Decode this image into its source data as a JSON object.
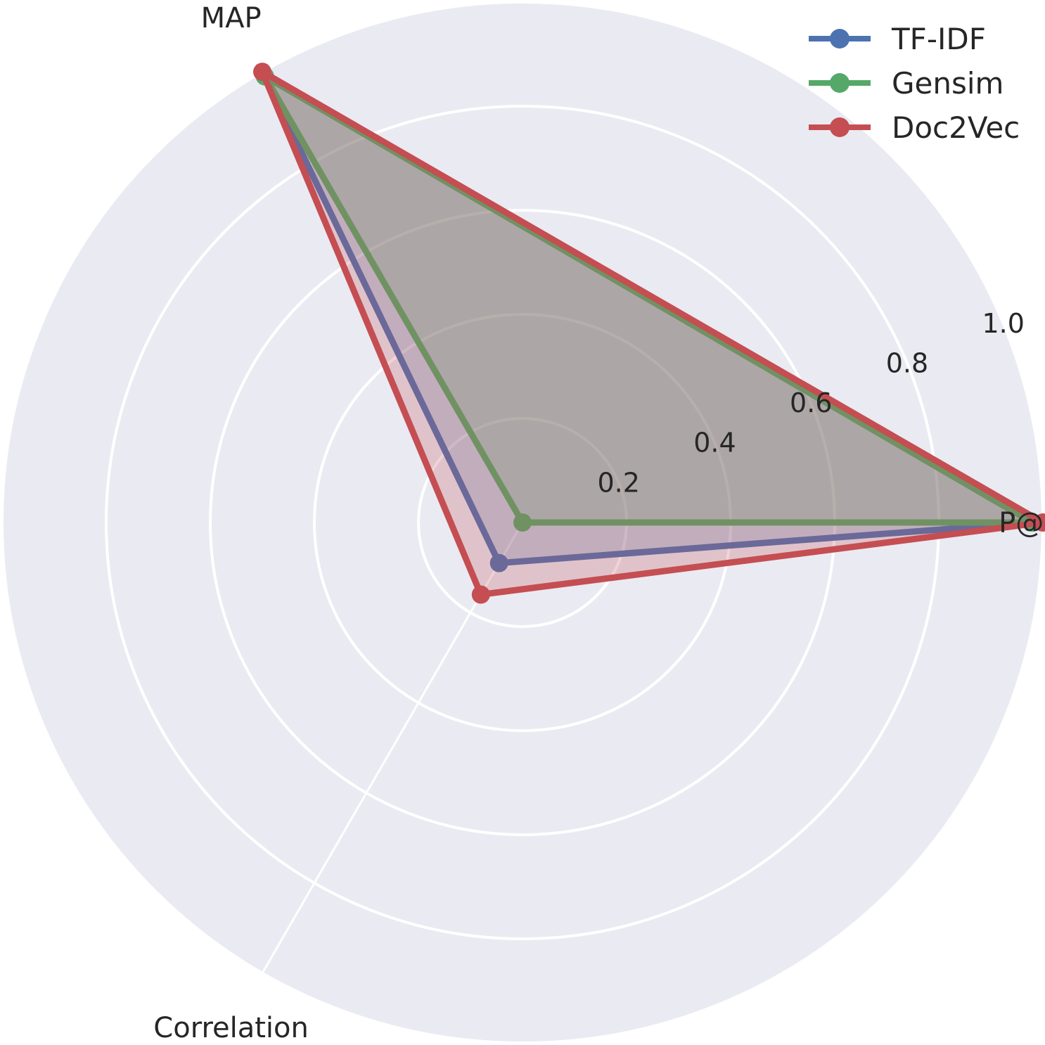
{
  "chart_data": {
    "type": "radar",
    "categories": [
      "P@",
      "MAP",
      "Correlation"
    ],
    "category_angles_deg": [
      0,
      120,
      240
    ],
    "rlim": [
      0,
      1.0
    ],
    "rticks": [
      0.2,
      0.4,
      0.6,
      0.8,
      1.0
    ],
    "rtick_labels": [
      "0.2",
      "0.4",
      "0.6",
      "0.8",
      "1.0"
    ],
    "grid": true,
    "legend_position": "top-right",
    "series": [
      {
        "name": "TF-IDF",
        "values": [
          0.98,
          0.99,
          0.09
        ],
        "color": "#4c72b0"
      },
      {
        "name": "Gensim",
        "values": [
          0.98,
          0.99,
          0.0
        ],
        "color": "#55a868"
      },
      {
        "name": "Doc2Vec",
        "values": [
          1.0,
          1.0,
          0.16
        ],
        "color": "#c44e52"
      }
    ]
  },
  "colors": {
    "panel": "#eaeaf2",
    "grid": "#ffffff",
    "text": "#262626"
  }
}
